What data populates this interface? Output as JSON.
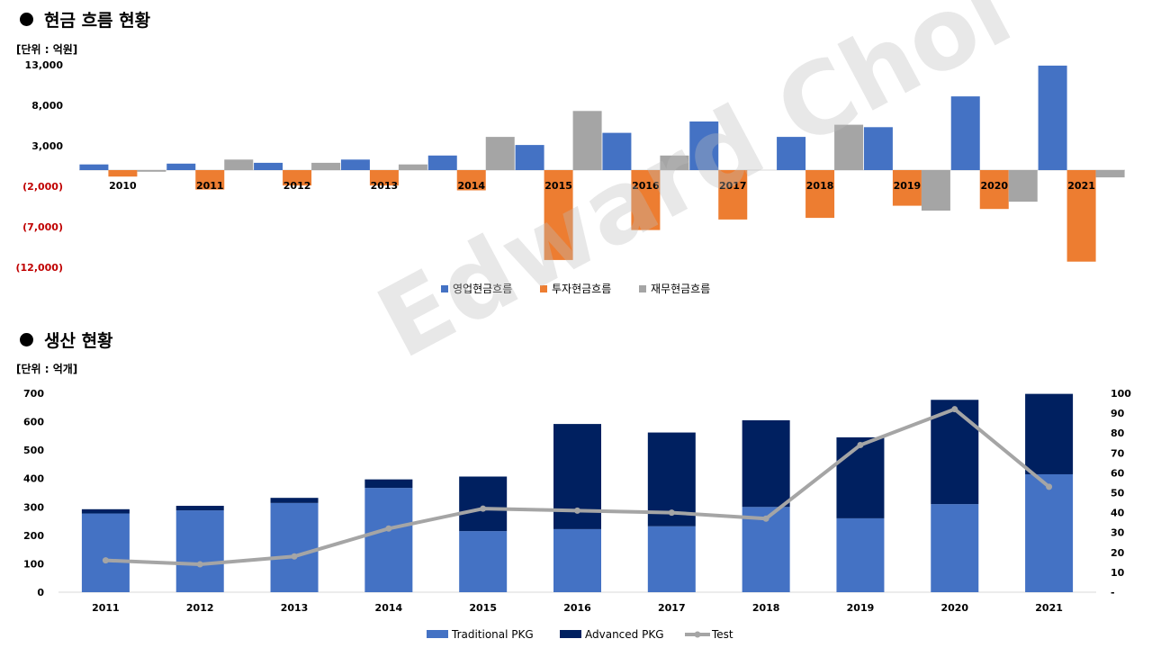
{
  "section1": {
    "title": "현금 흐름 현황",
    "unit": "[단위 : 억원]"
  },
  "section2": {
    "title": "생산 현황",
    "unit": "[단위 : 억개]"
  },
  "watermark": "Edward Choi",
  "chart_data": [
    {
      "type": "bar",
      "title": "",
      "categories": [
        "2010",
        "2011",
        "2012",
        "2013",
        "2014",
        "2015",
        "2016",
        "2017",
        "2018",
        "2019",
        "2020",
        "2021"
      ],
      "ylim": [
        -12000,
        13000
      ],
      "yticks": [
        "13,000",
        "8,000",
        "3,000",
        "(2,000)",
        "(7,000)",
        "(12,000)"
      ],
      "ytick_values": [
        13000,
        8000,
        3000,
        -2000,
        -7000,
        -12000
      ],
      "series": [
        {
          "name": "영업현금흐름",
          "color": "#4472C4",
          "values": [
            700,
            800,
            900,
            1300,
            1800,
            3100,
            4600,
            6000,
            4100,
            5300,
            9100,
            12900
          ]
        },
        {
          "name": "투자현금흐름",
          "color": "#ED7D31",
          "values": [
            -800,
            -2400,
            -1900,
            -1900,
            -2500,
            -11100,
            -7400,
            -6100,
            -5900,
            -4400,
            -4800,
            -11300
          ]
        },
        {
          "name": "재무현금흐름",
          "color": "#A5A5A5",
          "values": [
            -200,
            1300,
            900,
            700,
            4100,
            7300,
            1800,
            0,
            5600,
            -5000,
            -3900,
            -900
          ]
        }
      ],
      "legend": "bottom",
      "grid": false
    },
    {
      "type": "bar",
      "stacked": true,
      "title": "",
      "categories": [
        "2011",
        "2012",
        "2013",
        "2014",
        "2015",
        "2016",
        "2017",
        "2018",
        "2019",
        "2020",
        "2021"
      ],
      "ylim": [
        0,
        700
      ],
      "yticks": [
        "700",
        "600",
        "500",
        "400",
        "300",
        "200",
        "100",
        "0"
      ],
      "ytick_values": [
        700,
        600,
        500,
        400,
        300,
        200,
        100,
        0
      ],
      "y2lim": [
        0,
        100
      ],
      "y2ticks": [
        "100",
        "90",
        "80",
        "70",
        "60",
        "50",
        "40",
        "30",
        "20",
        "10",
        "-"
      ],
      "y2tick_values": [
        100,
        90,
        80,
        70,
        60,
        50,
        40,
        30,
        20,
        10,
        0
      ],
      "series": [
        {
          "name": "Traditional PKG",
          "color": "#4472C4",
          "values": [
            277,
            288,
            314,
            367,
            215,
            222,
            232,
            300,
            260,
            310,
            415
          ]
        },
        {
          "name": "Advanced PKG",
          "color": "#002060",
          "values": [
            15,
            16,
            18,
            30,
            192,
            370,
            330,
            305,
            285,
            367,
            283
          ]
        },
        {
          "name": "Test",
          "color": "#A5A5A5",
          "axis": "secondary",
          "line": true,
          "values": [
            16,
            14,
            18,
            32,
            42,
            41,
            40,
            37,
            74,
            92,
            53
          ]
        }
      ],
      "legend": "bottom",
      "grid": false
    }
  ]
}
